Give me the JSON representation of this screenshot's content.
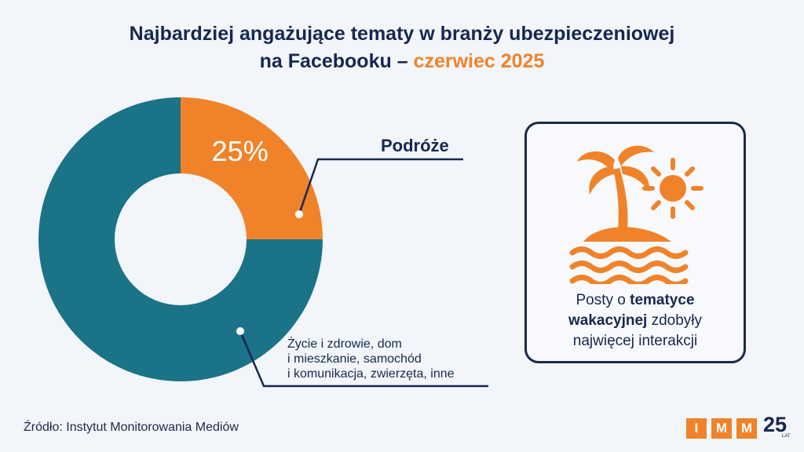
{
  "title": {
    "line1": "Najbardziej angażujące tematy w branży ubezpieczeniowej",
    "line2_prefix": "na Facebooku – ",
    "line2_highlight": "czerwiec 2025"
  },
  "chart_data": {
    "type": "pie",
    "variant": "donut",
    "slices": [
      {
        "label": "Podróże",
        "value": 25,
        "value_label": "25%",
        "color": "#f0832a"
      },
      {
        "label_lines": [
          "Życie i zdrowie, dom",
          "i mieszkanie, samochód",
          "i komunikacja, zwierzęta, inne"
        ],
        "value": 75,
        "color": "#1b7388"
      }
    ]
  },
  "card": {
    "icon": "island-palm-sun-icon",
    "text_part1": "Posty o ",
    "text_bold1": "tematyce",
    "text_bold2": "wakacyjnej",
    "text_part2": " zdobyły",
    "text_line3": "najwięcej interakcji"
  },
  "source": "Źródło: Instytut Monitorowania Mediów",
  "logo": {
    "letters": [
      "I",
      "M",
      "M"
    ],
    "number": "25",
    "suffix": "LAT"
  },
  "colors": {
    "accent": "#f0832a",
    "navy": "#16284f",
    "teal": "#1b7388",
    "background": "#f2f5f9"
  }
}
